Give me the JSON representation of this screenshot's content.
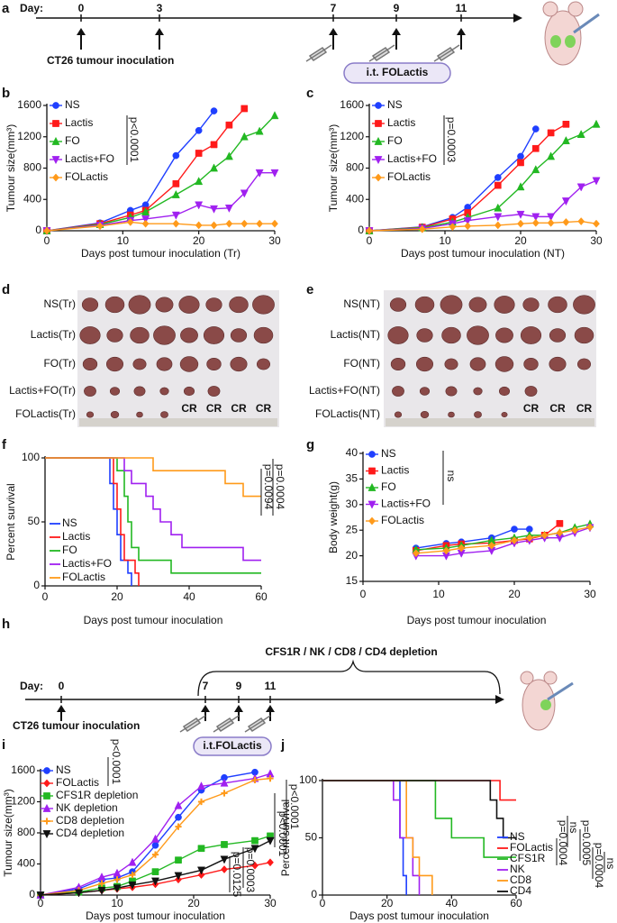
{
  "panel_labels": [
    "a",
    "b",
    "c",
    "d",
    "e",
    "f",
    "g",
    "h",
    "i",
    "j"
  ],
  "timeline_a": {
    "day_label": "Day:",
    "days": [
      0,
      3,
      7,
      9,
      11
    ],
    "inoculation": "CT26 tumour inoculation",
    "treatment": "i.t. FOLactis"
  },
  "photo_d": {
    "rows": [
      "NS(Tr)",
      "Lactis(Tr)",
      "FO(Tr)",
      "Lactis+FO(Tr)",
      "FOLactis(Tr)"
    ],
    "cr": [
      "CR",
      "CR",
      "CR",
      "CR"
    ]
  },
  "photo_e": {
    "rows": [
      "NS(NT)",
      "Lactis(NT)",
      "FO(NT)",
      "Lactis+FO(NT)",
      "FOLactis(NT)"
    ],
    "cr": [
      "CR",
      "CR",
      "CR"
    ]
  },
  "timeline_h": {
    "day_label": "Day:",
    "days": [
      0,
      7,
      9,
      11
    ],
    "depletion": "CFS1R / NK / CD8 / CD4 depletion",
    "inoculation": "CT26 tumour inoculation",
    "treatment": "i.t.FOLactis"
  },
  "chart_data": [
    {
      "type": "line",
      "y_label": "Tumour size(mm³)",
      "x_label": "Days post tumour inoculation (Tr)",
      "x": [
        0,
        7,
        11,
        13,
        17,
        20,
        22,
        24,
        26,
        28,
        30
      ],
      "xlim": [
        0,
        30
      ],
      "xticks": [
        0,
        10,
        20,
        30
      ],
      "ylim": [
        0,
        1600
      ],
      "yticks": [
        0,
        400,
        800,
        1200,
        1600
      ],
      "annotations": [
        "p<0.0001"
      ],
      "series": [
        {
          "name": "NS",
          "color": "#1f3fff",
          "marker": "circle",
          "values": [
            0,
            100,
            260,
            330,
            960,
            1280,
            1530,
            null,
            null,
            null,
            null
          ]
        },
        {
          "name": "Lactis",
          "color": "#ff1a1a",
          "marker": "square",
          "values": [
            0,
            90,
            200,
            260,
            600,
            990,
            1100,
            1350,
            1560,
            null,
            null
          ]
        },
        {
          "name": "FO",
          "color": "#22b822",
          "marker": "triangle",
          "values": [
            0,
            80,
            170,
            240,
            460,
            630,
            800,
            950,
            1200,
            1270,
            1470
          ]
        },
        {
          "name": "Lactis+FO",
          "color": "#a020f0",
          "marker": "down",
          "values": [
            0,
            70,
            130,
            150,
            200,
            330,
            280,
            290,
            480,
            740,
            740
          ]
        },
        {
          "name": "FOLactis",
          "color": "#ff9a1a",
          "marker": "diamond",
          "values": [
            0,
            60,
            110,
            90,
            90,
            70,
            70,
            90,
            90,
            90,
            90
          ]
        }
      ]
    },
    {
      "type": "line",
      "y_label": "Tumour size(mm³)",
      "x_label": "Days post tumour inoculation (NT)",
      "x": [
        0,
        7,
        11,
        13,
        17,
        20,
        22,
        24,
        26,
        28,
        30
      ],
      "xlim": [
        0,
        30
      ],
      "xticks": [
        0,
        10,
        20,
        30
      ],
      "ylim": [
        0,
        1600
      ],
      "yticks": [
        0,
        400,
        800,
        1200,
        1600
      ],
      "annotations": [
        "p=0.0003"
      ],
      "series": [
        {
          "name": "NS",
          "color": "#1f3fff",
          "marker": "circle",
          "values": [
            0,
            50,
            170,
            300,
            680,
            950,
            1300,
            null,
            null,
            null,
            null
          ]
        },
        {
          "name": "Lactis",
          "color": "#ff1a1a",
          "marker": "square",
          "values": [
            0,
            45,
            150,
            230,
            580,
            870,
            1050,
            1250,
            1360,
            null,
            null
          ]
        },
        {
          "name": "FO",
          "color": "#22b822",
          "marker": "triangle",
          "values": [
            0,
            40,
            110,
            170,
            290,
            560,
            780,
            950,
            1150,
            1230,
            1360
          ]
        },
        {
          "name": "Lactis+FO",
          "color": "#a020f0",
          "marker": "down",
          "values": [
            0,
            30,
            90,
            130,
            180,
            210,
            180,
            180,
            380,
            560,
            640
          ]
        },
        {
          "name": "FOLactis",
          "color": "#ff9a1a",
          "marker": "diamond",
          "values": [
            0,
            20,
            50,
            60,
            70,
            90,
            100,
            100,
            110,
            120,
            90
          ]
        }
      ]
    },
    {
      "type": "step",
      "y_label": "Percent survival",
      "x_label": "Days post tumour inoculation",
      "xlim": [
        0,
        60
      ],
      "xticks": [
        0,
        20,
        40,
        60
      ],
      "ylim": [
        0,
        100
      ],
      "yticks": [
        0,
        50,
        100
      ],
      "annotations": [
        "p=0.0004",
        "p=0.0094"
      ],
      "series": [
        {
          "name": "NS",
          "color": "#1f3fff",
          "x": [
            0,
            18,
            19,
            20,
            21,
            23,
            24
          ],
          "values": [
            100,
            80,
            60,
            40,
            20,
            10,
            0
          ]
        },
        {
          "name": "Lactis",
          "color": "#ff1a1a",
          "x": [
            0,
            19,
            20,
            21,
            22,
            25,
            26
          ],
          "values": [
            100,
            80,
            60,
            40,
            20,
            10,
            0
          ]
        },
        {
          "name": "FO",
          "color": "#22b822",
          "x": [
            0,
            20,
            22,
            23,
            24,
            26,
            35,
            60
          ],
          "values": [
            100,
            90,
            70,
            50,
            30,
            20,
            10,
            10
          ]
        },
        {
          "name": "Lactis+FO",
          "color": "#a020f0",
          "x": [
            0,
            22,
            24,
            28,
            30,
            32,
            35,
            38,
            48,
            55,
            60
          ],
          "values": [
            100,
            90,
            80,
            70,
            60,
            50,
            40,
            30,
            30,
            20,
            20
          ]
        },
        {
          "name": "FOLactis",
          "color": "#ff9a1a",
          "x": [
            0,
            30,
            50,
            55,
            58,
            60
          ],
          "values": [
            100,
            90,
            80,
            70,
            70,
            70
          ]
        }
      ]
    },
    {
      "type": "line",
      "y_label": "Body weight(g)",
      "x_label": "Days post tumour inoculation",
      "x": [
        7,
        11,
        13,
        17,
        20,
        22,
        24,
        26,
        28,
        30
      ],
      "xlim": [
        0,
        30
      ],
      "xticks": [
        0,
        10,
        20,
        30
      ],
      "ylim": [
        15,
        40
      ],
      "yticks": [
        15,
        20,
        25,
        30,
        35,
        40
      ],
      "annotations": [
        "ns"
      ],
      "series": [
        {
          "name": "NS",
          "color": "#1f3fff",
          "marker": "circle",
          "values": [
            21.5,
            22.4,
            22.7,
            23.5,
            25.2,
            25.2,
            null,
            null,
            null,
            null
          ]
        },
        {
          "name": "Lactis",
          "color": "#ff1a1a",
          "marker": "square",
          "values": [
            21,
            22,
            22.3,
            22.5,
            23,
            23.3,
            24,
            26.3,
            null,
            null
          ]
        },
        {
          "name": "FO",
          "color": "#22b822",
          "marker": "triangle",
          "values": [
            21.2,
            21.5,
            22,
            23,
            23.5,
            24,
            24,
            24.5,
            25.5,
            26.2
          ]
        },
        {
          "name": "Lactis+FO",
          "color": "#a020f0",
          "marker": "down",
          "values": [
            20,
            20,
            20.5,
            21,
            22.5,
            23,
            23.5,
            23.5,
            24.5,
            25.5
          ]
        },
        {
          "name": "FOLactis",
          "color": "#ff9a1a",
          "marker": "diamond",
          "values": [
            20.5,
            21,
            21.5,
            22,
            23,
            23.5,
            24,
            24.5,
            25,
            25.6
          ]
        }
      ]
    },
    {
      "type": "line",
      "y_label": "Tumour size(mm³)",
      "x_label": "Days post tumour inoculation",
      "x": [
        0,
        5,
        8,
        10,
        12,
        15,
        18,
        21,
        24,
        28,
        30
      ],
      "xlim": [
        0,
        30
      ],
      "xticks": [
        0,
        10,
        20,
        30
      ],
      "ylim": [
        0,
        1600
      ],
      "yticks": [
        0,
        400,
        800,
        1200,
        1600
      ],
      "annotations": [
        "p<0.0001",
        "p<0.0001",
        "p<0.0001",
        "p=0.0003",
        "p=0.0125"
      ],
      "series": [
        {
          "name": "NS",
          "color": "#1f3fff",
          "marker": "circle",
          "values": [
            0,
            80,
            200,
            220,
            300,
            640,
            1000,
            1350,
            1510,
            1580,
            null
          ]
        },
        {
          "name": "FOLactis",
          "color": "#ff1a1a",
          "marker": "diamond",
          "values": [
            0,
            30,
            60,
            80,
            100,
            140,
            200,
            260,
            330,
            380,
            420
          ]
        },
        {
          "name": "CFS1R depletion",
          "color": "#22b822",
          "marker": "square",
          "values": [
            0,
            40,
            90,
            110,
            180,
            300,
            450,
            600,
            650,
            700,
            760
          ]
        },
        {
          "name": "NK depletion",
          "color": "#a020f0",
          "marker": "triangle",
          "values": [
            0,
            100,
            230,
            280,
            420,
            720,
            1150,
            1400,
            1440,
            1500,
            1560
          ]
        },
        {
          "name": "CD8 depletion",
          "color": "#ff9a1a",
          "marker": "plus",
          "values": [
            0,
            60,
            150,
            200,
            260,
            520,
            880,
            1200,
            1310,
            1480,
            1500
          ]
        },
        {
          "name": "CD4 depletion",
          "color": "#111111",
          "marker": "down",
          "values": [
            0,
            30,
            60,
            90,
            130,
            180,
            250,
            320,
            460,
            600,
            700
          ]
        }
      ]
    },
    {
      "type": "step",
      "y_label": "Percent survival",
      "x_label": "Days post tumour inoculation",
      "xlim": [
        0,
        60
      ],
      "xticks": [
        0,
        20,
        40,
        60
      ],
      "ylim": [
        0,
        100
      ],
      "yticks": [
        0,
        50,
        100
      ],
      "annotations": [
        "p=0.0004",
        "ns",
        "p=0.0005",
        "p=0.0004",
        "ns"
      ],
      "series": [
        {
          "name": "NS",
          "color": "#1f3fff",
          "x": [
            0,
            24,
            25,
            26
          ],
          "values": [
            100,
            50,
            17,
            0
          ]
        },
        {
          "name": "FOLactis",
          "color": "#ff1a1a",
          "x": [
            0,
            55,
            60
          ],
          "values": [
            100,
            83,
            83
          ]
        },
        {
          "name": "CFS1R",
          "color": "#22b822",
          "x": [
            0,
            35,
            40,
            50,
            60
          ],
          "values": [
            100,
            67,
            50,
            33,
            33
          ]
        },
        {
          "name": "NK",
          "color": "#a020f0",
          "x": [
            0,
            22,
            24,
            28,
            30
          ],
          "values": [
            100,
            83,
            50,
            17,
            0
          ]
        },
        {
          "name": "CD8",
          "color": "#ff9a1a",
          "x": [
            0,
            26,
            28,
            30,
            34
          ],
          "values": [
            100,
            50,
            33,
            17,
            0
          ]
        },
        {
          "name": "CD4",
          "color": "#111111",
          "x": [
            0,
            52,
            54,
            56,
            60
          ],
          "values": [
            100,
            83,
            67,
            50,
            50
          ]
        }
      ]
    }
  ]
}
